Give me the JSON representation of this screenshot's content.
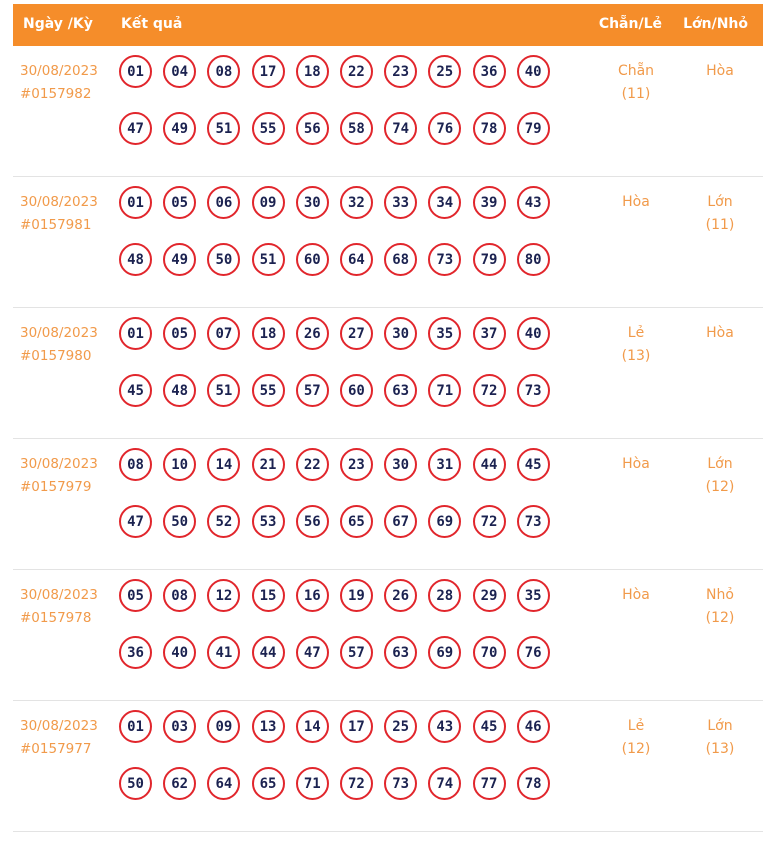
{
  "header": {
    "date_col": "Ngày /Kỳ",
    "result_col": "Kết quả",
    "even_odd_col": "Chẵn/Lẻ",
    "big_small_col": "Lớn/Nhỏ"
  },
  "colors": {
    "header_bg": "#f58d2a",
    "ball_border": "#e1262c",
    "ball_text": "#1b2250",
    "accent_text": "#f19a4a"
  },
  "rows": [
    {
      "date": "30/08/2023",
      "period": "#0157982",
      "numbers": [
        "01",
        "04",
        "08",
        "17",
        "18",
        "22",
        "23",
        "25",
        "36",
        "40",
        "47",
        "49",
        "51",
        "55",
        "56",
        "58",
        "74",
        "76",
        "78",
        "79"
      ],
      "even_odd": "Chẵn",
      "even_odd_count": "(11)",
      "big_small": "Hòa",
      "big_small_count": ""
    },
    {
      "date": "30/08/2023",
      "period": "#0157981",
      "numbers": [
        "01",
        "05",
        "06",
        "09",
        "30",
        "32",
        "33",
        "34",
        "39",
        "43",
        "48",
        "49",
        "50",
        "51",
        "60",
        "64",
        "68",
        "73",
        "79",
        "80"
      ],
      "even_odd": "Hòa",
      "even_odd_count": "",
      "big_small": "Lớn",
      "big_small_count": "(11)"
    },
    {
      "date": "30/08/2023",
      "period": "#0157980",
      "numbers": [
        "01",
        "05",
        "07",
        "18",
        "26",
        "27",
        "30",
        "35",
        "37",
        "40",
        "45",
        "48",
        "51",
        "55",
        "57",
        "60",
        "63",
        "71",
        "72",
        "73"
      ],
      "even_odd": "Lẻ",
      "even_odd_count": "(13)",
      "big_small": "Hòa",
      "big_small_count": ""
    },
    {
      "date": "30/08/2023",
      "period": "#0157979",
      "numbers": [
        "08",
        "10",
        "14",
        "21",
        "22",
        "23",
        "30",
        "31",
        "44",
        "45",
        "47",
        "50",
        "52",
        "53",
        "56",
        "65",
        "67",
        "69",
        "72",
        "73"
      ],
      "even_odd": "Hòa",
      "even_odd_count": "",
      "big_small": "Lớn",
      "big_small_count": "(12)"
    },
    {
      "date": "30/08/2023",
      "period": "#0157978",
      "numbers": [
        "05",
        "08",
        "12",
        "15",
        "16",
        "19",
        "26",
        "28",
        "29",
        "35",
        "36",
        "40",
        "41",
        "44",
        "47",
        "57",
        "63",
        "69",
        "70",
        "76"
      ],
      "even_odd": "Hòa",
      "even_odd_count": "",
      "big_small": "Nhỏ",
      "big_small_count": "(12)"
    },
    {
      "date": "30/08/2023",
      "period": "#0157977",
      "numbers": [
        "01",
        "03",
        "09",
        "13",
        "14",
        "17",
        "25",
        "43",
        "45",
        "46",
        "50",
        "62",
        "64",
        "65",
        "71",
        "72",
        "73",
        "74",
        "77",
        "78"
      ],
      "even_odd": "Lẻ",
      "even_odd_count": "(12)",
      "big_small": "Lớn",
      "big_small_count": "(13)"
    }
  ]
}
